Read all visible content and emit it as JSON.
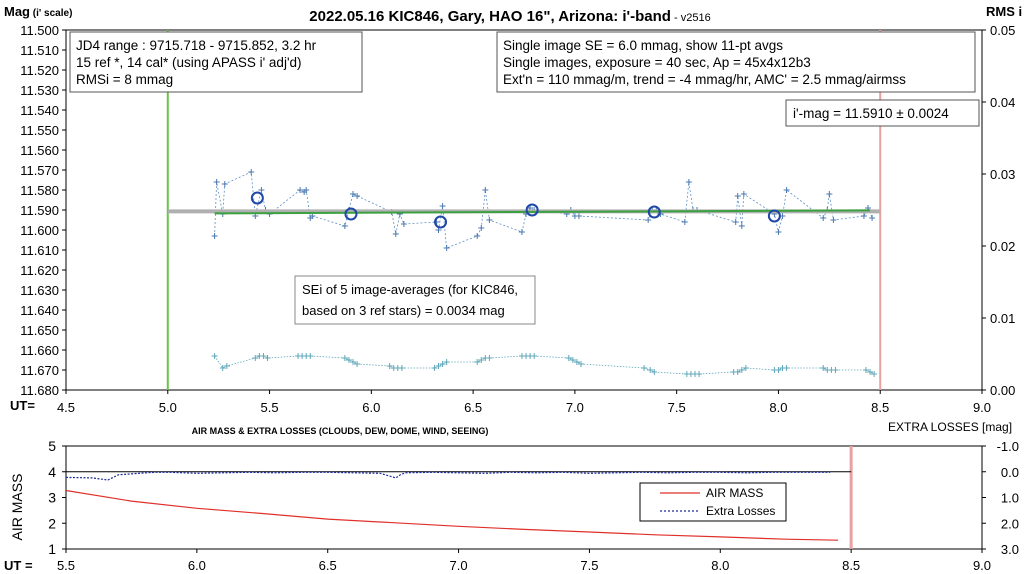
{
  "chart_data": [
    {
      "type": "scatter",
      "title": "2022.05.16 KIC846, Gary, HAO 16\", Arizona: i'-band",
      "version": " - v2516",
      "ylabel_left": "Mag",
      "ylabel_left_suffix": " (i' scale)",
      "ylabel_right": "RMS i",
      "xlabel": "UT=",
      "xlim": [
        4.5,
        9.0
      ],
      "ylim": [
        11.68,
        11.5
      ],
      "ylim_right": [
        0.0,
        0.05
      ],
      "x_ticks": [
        "4.5",
        "5.0",
        "5.5",
        "6.0",
        "6.5",
        "7.0",
        "7.5",
        "8.0",
        "8.5",
        "9.0"
      ],
      "y_ticks": [
        "11.500",
        "11.510",
        "11.520",
        "11.530",
        "11.540",
        "11.550",
        "11.560",
        "11.570",
        "11.580",
        "11.590",
        "11.600",
        "11.610",
        "11.620",
        "11.630",
        "11.640",
        "11.650",
        "11.660",
        "11.670",
        "11.680"
      ],
      "y_ticks_right": [
        "0.00",
        "0.01",
        "0.02",
        "0.03",
        "0.04",
        "0.05"
      ],
      "vertical_lines": [
        {
          "x": 5.0,
          "color": "#6cc24a"
        },
        {
          "x": 8.5,
          "color": "#e8a0a0"
        }
      ],
      "series": [
        {
          "kind": "individual",
          "color": "#5b8fc7",
          "x": [
            5.23,
            5.24,
            5.27,
            5.28,
            5.41,
            5.43,
            5.46,
            5.48,
            5.5,
            5.65,
            5.67,
            5.68,
            5.7,
            5.71,
            5.87,
            5.89,
            5.91,
            5.93,
            6.1,
            6.12,
            6.14,
            6.16,
            6.32,
            6.33,
            6.35,
            6.37,
            6.52,
            6.54,
            6.56,
            6.58,
            6.74,
            6.76,
            6.78,
            6.8,
            6.96,
            6.98,
            7.0,
            7.02,
            7.36,
            7.38,
            7.4,
            7.42,
            7.54,
            7.56,
            7.58,
            7.6,
            7.79,
            7.8,
            7.82,
            7.83,
            7.98,
            8.0,
            8.02,
            8.04,
            8.22,
            8.24,
            8.25,
            8.27,
            8.42,
            8.44,
            8.46
          ],
          "y": [
            11.603,
            11.576,
            11.592,
            11.577,
            11.571,
            11.593,
            11.58,
            11.59,
            11.592,
            11.58,
            11.581,
            11.58,
            11.594,
            11.593,
            11.598,
            11.59,
            11.582,
            11.583,
            11.591,
            11.602,
            11.592,
            11.597,
            11.596,
            11.6,
            11.588,
            11.609,
            11.603,
            11.599,
            11.58,
            11.595,
            11.601,
            11.592,
            11.589,
            11.59,
            11.592,
            11.59,
            11.593,
            11.593,
            11.595,
            11.59,
            11.59,
            11.592,
            11.596,
            11.576,
            11.59,
            11.59,
            11.596,
            11.583,
            11.598,
            11.582,
            11.592,
            11.601,
            11.593,
            11.58,
            11.594,
            11.59,
            11.582,
            11.595,
            11.593,
            11.589,
            11.594
          ]
        },
        {
          "kind": "averages",
          "color": "#1e47a8",
          "x": [
            5.44,
            5.9,
            6.34,
            6.79,
            7.39,
            7.98
          ],
          "y": [
            11.584,
            11.592,
            11.596,
            11.59,
            11.591,
            11.593
          ]
        },
        {
          "kind": "rms",
          "color": "#5fa7b8",
          "x": [
            5.23,
            5.27,
            5.29,
            5.43,
            5.45,
            5.47,
            5.49,
            5.64,
            5.66,
            5.68,
            5.7,
            5.87,
            5.89,
            5.91,
            5.93,
            6.09,
            6.11,
            6.13,
            6.15,
            6.31,
            6.33,
            6.35,
            6.37,
            6.52,
            6.54,
            6.56,
            6.58,
            6.74,
            6.76,
            6.78,
            6.8,
            6.97,
            6.99,
            7.01,
            7.03,
            7.34,
            7.37,
            7.39,
            7.55,
            7.57,
            7.59,
            7.61,
            7.78,
            7.8,
            7.82,
            7.84,
            7.98,
            8.0,
            8.02,
            8.04,
            8.22,
            8.24,
            8.26,
            8.28,
            8.43,
            8.45,
            8.47
          ],
          "y": [
            11.663,
            11.669,
            11.668,
            11.664,
            11.663,
            11.663,
            11.664,
            11.663,
            11.663,
            11.663,
            11.663,
            11.664,
            11.665,
            11.666,
            11.667,
            11.668,
            11.669,
            11.669,
            11.669,
            11.669,
            11.668,
            11.667,
            11.666,
            11.666,
            11.665,
            11.664,
            11.664,
            11.663,
            11.663,
            11.663,
            11.663,
            11.664,
            11.665,
            11.666,
            11.667,
            11.669,
            11.67,
            11.671,
            11.672,
            11.672,
            11.672,
            11.672,
            11.671,
            11.671,
            11.67,
            11.669,
            11.67,
            11.67,
            11.669,
            11.669,
            11.669,
            11.67,
            11.67,
            11.67,
            11.67,
            11.671,
            11.672
          ]
        }
      ],
      "ref_line": {
        "x1": 5.0,
        "x2": 8.5,
        "y": 11.5907,
        "color": "#b0b0b0"
      },
      "fit_line": {
        "x1": 5.23,
        "x2": 8.45,
        "y1": 11.5917,
        "y2": 11.5902,
        "color": "#3aa040"
      },
      "annotation_boxes": [
        {
          "lines": [
            "JD4 range : 9715.718 - 9715.852, 3.2  hr",
            "15 ref *, 14 cal* (using APASS i' adj'd)",
            "RMSi = 8 mmag"
          ]
        },
        {
          "lines": [
            "Single image SE = 6.0 mmag, show 11-pt avgs",
            "Single images, exposure = 40 sec, Ap = 45x4x12b3",
            "Ext'n = 110 mmag/m, trend = -4 mmag/hr, AMC' = 2.5 mmag/airmss"
          ]
        },
        {
          "lines": [
            "i'-mag = 11.5910 ± 0.0024"
          ]
        },
        {
          "lines": [
            "SEi of 5 image-averages (for KIC846,",
            "based on 3 ref stars) = 0.0034 mag"
          ]
        }
      ]
    },
    {
      "type": "line",
      "title": "AIR MASS & EXTRA LOSSES (CLOUDS, DEW, DOME, WIND, SEEING)",
      "ylabel_left": "AIR MASS",
      "ylabel_right": "EXTRA LOSSES [mag]",
      "xlabel": "UT =",
      "xlim": [
        5.5,
        9.0
      ],
      "ylim": [
        1,
        5
      ],
      "ylim_right": [
        3.0,
        -1.0
      ],
      "x_ticks": [
        "5.5",
        "6.0",
        "6.5",
        "7.0",
        "7.5",
        "8.0",
        "8.5",
        "9.0"
      ],
      "y_ticks": [
        "1",
        "2",
        "3",
        "4",
        "5"
      ],
      "y_ticks_right": [
        "-1.0",
        "0.0",
        "1.0",
        "2.0",
        "3.0"
      ],
      "vertical_lines": [
        {
          "x": 8.5,
          "color": "#e8a0a0"
        }
      ],
      "legend": {
        "position": "bottom-right-inner",
        "entries": [
          "AIR MASS",
          "Extra Losses"
        ]
      },
      "series": [
        {
          "name": "AIR MASS",
          "color": "#e0302a",
          "x": [
            5.5,
            5.75,
            6.0,
            6.25,
            6.5,
            6.75,
            7.0,
            7.25,
            7.5,
            7.75,
            8.0,
            8.25,
            8.45
          ],
          "y": [
            3.27,
            2.86,
            2.58,
            2.38,
            2.16,
            2.02,
            1.88,
            1.76,
            1.66,
            1.55,
            1.47,
            1.38,
            1.34
          ]
        },
        {
          "name": "Extra Losses",
          "color": "#1a2a9a",
          "x": [
            5.5,
            5.6,
            5.66,
            5.68,
            5.7,
            5.78,
            5.84,
            5.9,
            6.0,
            6.1,
            6.2,
            6.3,
            6.4,
            6.5,
            6.6,
            6.7,
            6.76,
            6.78,
            6.8,
            6.9,
            7.0,
            7.1,
            7.2,
            7.3,
            7.4,
            7.5,
            7.6,
            7.7,
            7.8,
            7.9,
            8.0,
            8.1,
            8.2,
            8.3,
            8.42
          ],
          "y": [
            0.22,
            0.24,
            0.32,
            0.22,
            0.12,
            0.06,
            0.02,
            0.02,
            0.06,
            0.04,
            0.02,
            0.04,
            0.02,
            0.02,
            0.04,
            0.06,
            0.24,
            0.1,
            0.04,
            0.02,
            0.04,
            0.06,
            0.02,
            0.04,
            0.02,
            0.06,
            0.04,
            0.02,
            0.04,
            0.02,
            0.02,
            0.04,
            0.02,
            0.02,
            0.02
          ]
        }
      ]
    }
  ]
}
